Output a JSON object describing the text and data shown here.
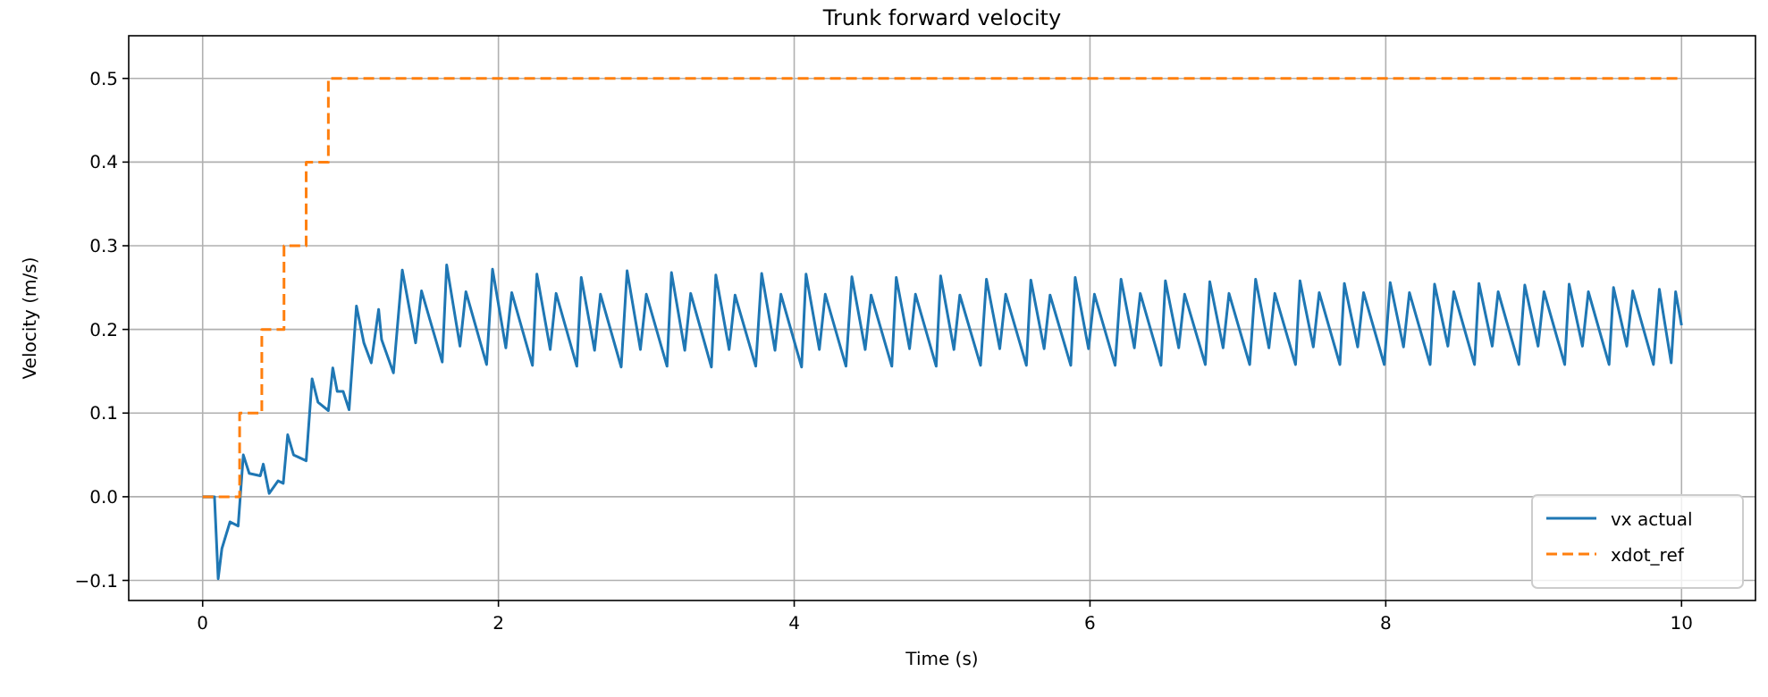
{
  "chart_data": {
    "type": "line",
    "title": "Trunk forward velocity",
    "xlabel": "Time (s)",
    "ylabel": "Velocity (m/s)",
    "xlim": [
      -0.5,
      10.5
    ],
    "ylim": [
      -0.124,
      0.551
    ],
    "xticks": [
      0,
      2,
      4,
      6,
      8,
      10
    ],
    "yticks": [
      {
        "value": -0.1,
        "label": "−0.1"
      },
      {
        "value": 0,
        "label": "0.0"
      },
      0.1,
      0.2,
      0.3,
      0.4,
      0.5
    ],
    "grid": true,
    "legend": "bottom right",
    "series": [
      {
        "name": "vx actual",
        "color": "#1f77b4",
        "line_style": "solid",
        "x": [
          0,
          0.08,
          0.105,
          0.13,
          0.185,
          0.24,
          0.275,
          0.315,
          0.39,
          0.41,
          0.45,
          0.51,
          0.545,
          0.575,
          0.615,
          0.7,
          0.74,
          0.78,
          0.85,
          0.88,
          0.91,
          0.95,
          0.99,
          1.04,
          1.09,
          1.14,
          1.19,
          1.21,
          1.29,
          1.35,
          1.44,
          1.48,
          1.62,
          1.65,
          1.74,
          1.78,
          1.92,
          1.96,
          2.05,
          2.09,
          2.23,
          2.26,
          2.35,
          2.39,
          2.53,
          2.56,
          2.65,
          2.69,
          2.83,
          2.87,
          2.96,
          3.0,
          3.14,
          3.17,
          3.26,
          3.3,
          3.44,
          3.47,
          3.56,
          3.6,
          3.74,
          3.78,
          3.87,
          3.91,
          4.05,
          4.08,
          4.17,
          4.21,
          4.35,
          4.39,
          4.48,
          4.52,
          4.66,
          4.69,
          4.78,
          4.82,
          4.96,
          4.99,
          5.08,
          5.12,
          5.26,
          5.3,
          5.39,
          5.43,
          5.57,
          5.6,
          5.69,
          5.73,
          5.87,
          5.9,
          5.99,
          6.03,
          6.17,
          6.21,
          6.3,
          6.34,
          6.48,
          6.51,
          6.6,
          6.64,
          6.78,
          6.81,
          6.9,
          6.94,
          7.08,
          7.12,
          7.21,
          7.25,
          7.39,
          7.42,
          7.51,
          7.55,
          7.69,
          7.72,
          7.81,
          7.85,
          7.99,
          8.03,
          8.12,
          8.16,
          8.3,
          8.33,
          8.42,
          8.46,
          8.6,
          8.63,
          8.72,
          8.76,
          8.9,
          8.94,
          9.03,
          9.07,
          9.21,
          9.24,
          9.33,
          9.37,
          9.51,
          9.54,
          9.63,
          9.67,
          9.81,
          9.85,
          9.93,
          9.96,
          10.0
        ],
        "values": [
          0,
          0,
          -0.098,
          -0.062,
          -0.03,
          -0.035,
          0.05,
          0.028,
          0.025,
          0.039,
          0.004,
          0.019,
          0.016,
          0.074,
          0.05,
          0.043,
          0.141,
          0.113,
          0.103,
          0.154,
          0.126,
          0.126,
          0.104,
          0.228,
          0.184,
          0.16,
          0.224,
          0.188,
          0.148,
          0.271,
          0.184,
          0.246,
          0.161,
          0.277,
          0.18,
          0.245,
          0.158,
          0.272,
          0.178,
          0.244,
          0.157,
          0.266,
          0.176,
          0.243,
          0.156,
          0.262,
          0.175,
          0.242,
          0.155,
          0.27,
          0.176,
          0.242,
          0.156,
          0.268,
          0.175,
          0.243,
          0.155,
          0.265,
          0.176,
          0.241,
          0.156,
          0.267,
          0.175,
          0.242,
          0.155,
          0.266,
          0.176,
          0.242,
          0.156,
          0.263,
          0.176,
          0.241,
          0.156,
          0.262,
          0.177,
          0.242,
          0.156,
          0.264,
          0.176,
          0.241,
          0.157,
          0.26,
          0.177,
          0.242,
          0.157,
          0.259,
          0.177,
          0.241,
          0.157,
          0.262,
          0.177,
          0.242,
          0.157,
          0.26,
          0.178,
          0.243,
          0.157,
          0.258,
          0.178,
          0.242,
          0.158,
          0.257,
          0.178,
          0.243,
          0.158,
          0.26,
          0.178,
          0.243,
          0.158,
          0.258,
          0.179,
          0.244,
          0.158,
          0.255,
          0.179,
          0.244,
          0.158,
          0.256,
          0.179,
          0.244,
          0.158,
          0.254,
          0.18,
          0.245,
          0.158,
          0.255,
          0.18,
          0.245,
          0.158,
          0.253,
          0.18,
          0.245,
          0.158,
          0.254,
          0.18,
          0.245,
          0.158,
          0.25,
          0.18,
          0.246,
          0.158,
          0.248,
          0.16,
          0.245,
          0.205
        ]
      },
      {
        "name": "xdot_ref",
        "type": "step",
        "color": "#ff7f0e",
        "line_style": "dashed",
        "x": [
          0,
          0.25,
          0.4,
          0.55,
          0.7,
          0.85,
          10
        ],
        "values": [
          0,
          0.1,
          0.2,
          0.3,
          0.4,
          0.5,
          0.5
        ]
      }
    ]
  }
}
